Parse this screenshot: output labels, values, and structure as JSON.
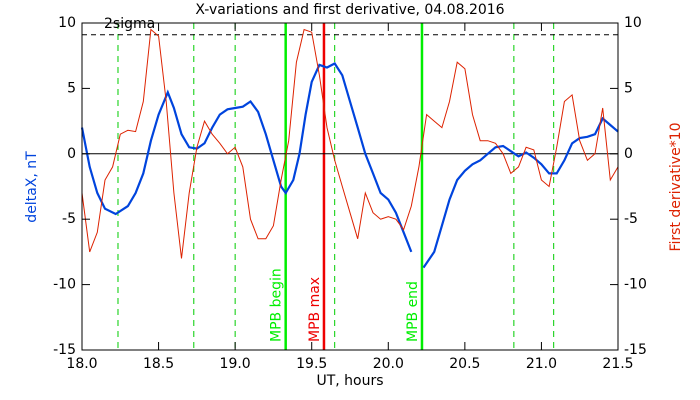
{
  "chart_data": {
    "type": "line",
    "title": "X-variations and first derivative, 04.08.2016",
    "x_label": "UT, hours",
    "y_label": "deltaX, nT",
    "y2_label": "First derivative*10",
    "xlim": [
      18,
      21.5
    ],
    "xticks": [
      {
        "value": 18,
        "label": "18.0"
      },
      {
        "value": 18.5,
        "label": "18.5"
      },
      {
        "value": 19,
        "label": "19.0"
      },
      {
        "value": 19.5,
        "label": "19.5"
      },
      {
        "value": 20,
        "label": "20.0"
      },
      {
        "value": 20.5,
        "label": "20.5"
      },
      {
        "value": 21,
        "label": "21.0"
      },
      {
        "value": 21.5,
        "label": "21.5"
      }
    ],
    "ylim": [
      -15,
      10
    ],
    "yticks": [
      -15,
      -10,
      -5,
      0,
      5,
      10
    ],
    "y2lim": [
      -15,
      10
    ],
    "y2ticks": [
      -15,
      -10,
      -5,
      0,
      5,
      10
    ],
    "zero_line": true,
    "hlines": [
      {
        "label": "2sigma",
        "y": 9.1,
        "color": "#000000",
        "style": "dashed"
      }
    ],
    "vlines": [
      {
        "x": 18.235,
        "color": "#00cc00",
        "style": "dashed"
      },
      {
        "x": 18.73,
        "color": "#00cc00",
        "style": "dashed"
      },
      {
        "x": 19.0,
        "color": "#00cc00",
        "style": "dashed"
      },
      {
        "x": 19.33,
        "color": "#00ee00",
        "style": "solid",
        "label": "MPB begin"
      },
      {
        "x": 19.58,
        "color": "#ee0000",
        "style": "solid",
        "label": "MPB max"
      },
      {
        "x": 19.65,
        "color": "#00cc00",
        "style": "dashed"
      },
      {
        "x": 20.22,
        "color": "#00ee00",
        "style": "solid",
        "label": "MPB end"
      },
      {
        "x": 20.82,
        "color": "#00cc00",
        "style": "dashed"
      },
      {
        "x": 21.08,
        "color": "#00cc00",
        "style": "dashed"
      }
    ],
    "series": [
      {
        "name": "deltaX, nT",
        "color": "#0044dd",
        "axis": "y",
        "x": [
          18.0,
          18.05,
          18.1,
          18.15,
          18.22,
          18.3,
          18.35,
          18.4,
          18.45,
          18.5,
          18.56,
          18.6,
          18.65,
          18.7,
          18.75,
          18.8,
          18.85,
          18.9,
          18.95,
          19.0,
          19.05,
          19.1,
          19.15,
          19.2,
          19.25,
          19.3,
          19.33,
          19.38,
          19.42,
          19.46,
          19.5,
          19.55,
          19.6,
          19.65,
          19.7,
          19.75,
          19.8,
          19.85,
          19.9,
          19.95,
          20.0,
          20.05,
          20.1,
          20.15,
          20.19,
          20.23,
          20.3,
          20.35,
          20.4,
          20.45,
          20.5,
          20.55,
          20.6,
          20.65,
          20.7,
          20.75,
          20.8,
          20.85,
          20.9,
          20.95,
          21.0,
          21.05,
          21.1,
          21.15,
          21.2,
          21.25,
          21.3,
          21.35,
          21.4,
          21.45,
          21.5
        ],
        "values": [
          2,
          -1,
          -3,
          -4.2,
          -4.6,
          -4,
          -3,
          -1.5,
          1,
          3,
          4.7,
          3.5,
          1.5,
          0.5,
          0.4,
          0.8,
          2,
          3,
          3.4,
          3.5,
          3.6,
          4,
          3.2,
          1.5,
          -0.5,
          -2.5,
          -3,
          -2,
          0,
          3,
          5.5,
          6.8,
          6.6,
          6.9,
          6,
          4,
          2,
          0,
          -1.5,
          -3,
          -3.5,
          -4.5,
          -6,
          -7.5,
          null,
          -8.7,
          -7.5,
          -5.5,
          -3.5,
          -2,
          -1.3,
          -0.8,
          -0.5,
          0,
          0.5,
          0.6,
          0.2,
          -0.2,
          0.1,
          -0.3,
          -0.8,
          -1.5,
          -1.5,
          -0.5,
          0.8,
          1.2,
          1.3,
          1.5,
          2.7,
          2.2,
          1.7
        ]
      },
      {
        "name": "First derivative*10",
        "color": "#dd2200",
        "axis": "y2",
        "x": [
          18.0,
          18.05,
          18.1,
          18.15,
          18.2,
          18.25,
          18.3,
          18.35,
          18.4,
          18.45,
          18.5,
          18.55,
          18.6,
          18.65,
          18.7,
          18.75,
          18.8,
          18.85,
          18.9,
          18.95,
          19.0,
          19.05,
          19.1,
          19.15,
          19.2,
          19.25,
          19.3,
          19.35,
          19.4,
          19.45,
          19.5,
          19.55,
          19.6,
          19.65,
          19.7,
          19.75,
          19.8,
          19.85,
          19.9,
          19.95,
          20.0,
          20.05,
          20.1,
          20.15,
          20.2,
          20.25,
          20.3,
          20.35,
          20.4,
          20.45,
          20.5,
          20.55,
          20.6,
          20.65,
          20.7,
          20.75,
          20.8,
          20.85,
          20.9,
          20.95,
          21.0,
          21.05,
          21.1,
          21.15,
          21.2,
          21.25,
          21.3,
          21.35,
          21.4,
          21.45,
          21.5
        ],
        "values": [
          -3,
          -7.5,
          -6,
          -2,
          -1,
          1.5,
          1.8,
          1.7,
          4,
          9.5,
          9,
          4,
          -3,
          -8,
          -3,
          0.5,
          2.5,
          1.5,
          0.8,
          0,
          0.5,
          -1,
          -5,
          -6.5,
          -6.5,
          -5.5,
          -2,
          1,
          7,
          9.5,
          9.3,
          6,
          2,
          -0.5,
          -2.5,
          -4.5,
          -6.5,
          -3,
          -4.5,
          -5,
          -4.8,
          -5,
          -5.8,
          -4,
          -1,
          3,
          2.5,
          2,
          4,
          7,
          6.5,
          3,
          1,
          1,
          0.8,
          0,
          -1.5,
          -1,
          0.5,
          0.3,
          -2,
          -2.5,
          0.5,
          4,
          4.5,
          1,
          -0.5,
          0,
          3.5,
          -2,
          -1
        ]
      }
    ]
  }
}
